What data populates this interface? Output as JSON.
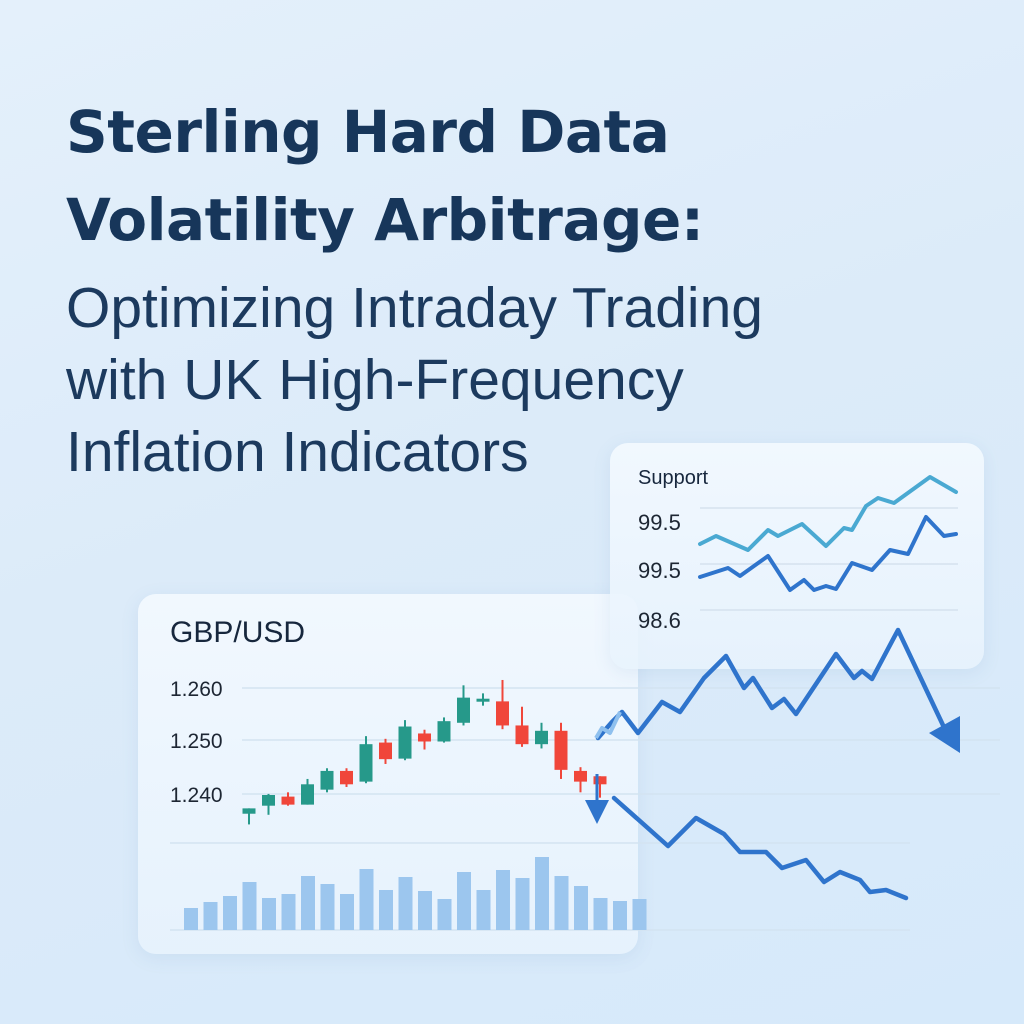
{
  "title": {
    "line1": "Sterling Hard Data",
    "line2": "Volatility Arbitrage:",
    "sub1": "Optimizing Intraday Trading",
    "sub2": "with UK High-Frequency",
    "sub3": "Inflation Indicators"
  },
  "colors": {
    "title": "#17365a",
    "bullish": "#26998a",
    "bearish": "#f0463a",
    "line_primary": "#2f74cc",
    "line_secondary": "#4aa9d2",
    "volume": "#9cc6ee"
  },
  "main_panel": {
    "pair": "GBP/USD",
    "y_ticks": [
      "1.260",
      "1.250",
      "1.240"
    ]
  },
  "support_panel": {
    "label": "Support",
    "y_ticks": [
      "99.5",
      "99.5",
      "98.6"
    ]
  },
  "chart_data": [
    {
      "type": "candlestick",
      "title": "GBP/USD",
      "ylabel": "",
      "y_ticks": [
        1.26,
        1.25,
        1.24
      ],
      "ylim": [
        1.233,
        1.262
      ],
      "candles": [
        {
          "o": 1.2365,
          "h": 1.2375,
          "l": 1.2345,
          "c": 1.2375,
          "dir": "up"
        },
        {
          "o": 1.238,
          "h": 1.2402,
          "l": 1.2363,
          "c": 1.24,
          "dir": "up"
        },
        {
          "o": 1.2397,
          "h": 1.2405,
          "l": 1.238,
          "c": 1.2382,
          "dir": "down"
        },
        {
          "o": 1.2382,
          "h": 1.243,
          "l": 1.2382,
          "c": 1.242,
          "dir": "up"
        },
        {
          "o": 1.241,
          "h": 1.245,
          "l": 1.2405,
          "c": 1.2445,
          "dir": "up"
        },
        {
          "o": 1.2445,
          "h": 1.245,
          "l": 1.2415,
          "c": 1.242,
          "dir": "down"
        },
        {
          "o": 1.2425,
          "h": 1.251,
          "l": 1.2422,
          "c": 1.2495,
          "dir": "up"
        },
        {
          "o": 1.2498,
          "h": 1.2505,
          "l": 1.2458,
          "c": 1.2467,
          "dir": "down"
        },
        {
          "o": 1.2468,
          "h": 1.254,
          "l": 1.2465,
          "c": 1.2528,
          "dir": "up"
        },
        {
          "o": 1.2515,
          "h": 1.2522,
          "l": 1.2485,
          "c": 1.25,
          "dir": "down"
        },
        {
          "o": 1.25,
          "h": 1.2545,
          "l": 1.2498,
          "c": 1.2538,
          "dir": "up"
        },
        {
          "o": 1.2535,
          "h": 1.2605,
          "l": 1.253,
          "c": 1.2582,
          "dir": "up"
        },
        {
          "o": 1.2575,
          "h": 1.259,
          "l": 1.2567,
          "c": 1.258,
          "dir": "up"
        },
        {
          "o": 1.2575,
          "h": 1.2615,
          "l": 1.2523,
          "c": 1.253,
          "dir": "down"
        },
        {
          "o": 1.253,
          "h": 1.2565,
          "l": 1.249,
          "c": 1.2495,
          "dir": "down"
        },
        {
          "o": 1.2495,
          "h": 1.2535,
          "l": 1.2487,
          "c": 1.252,
          "dir": "up"
        },
        {
          "o": 1.252,
          "h": 1.2535,
          "l": 1.243,
          "c": 1.2447,
          "dir": "down"
        },
        {
          "o": 1.2445,
          "h": 1.2452,
          "l": 1.2405,
          "c": 1.2425,
          "dir": "down"
        },
        {
          "o": 1.2435,
          "h": 1.2435,
          "l": 1.2395,
          "c": 1.242,
          "dir": "down"
        }
      ],
      "volume": [
        22,
        28,
        34,
        48,
        32,
        36,
        54,
        46,
        36,
        61,
        40,
        53,
        39,
        31,
        58,
        40,
        60,
        52,
        73,
        54,
        44,
        32,
        29,
        31
      ]
    },
    {
      "type": "line",
      "title": "Support",
      "y_ticks": [
        "99.5",
        "99.5",
        "98.6"
      ],
      "series": [
        {
          "name": "upper",
          "color": "#4aa9d2",
          "points": [
            [
              700,
              544
            ],
            [
              716,
              536
            ],
            [
              748,
              550
            ],
            [
              768,
              530
            ],
            [
              778,
              536
            ],
            [
              802,
              524
            ],
            [
              826,
              546
            ],
            [
              844,
              528
            ],
            [
              852,
              530
            ],
            [
              866,
              506
            ],
            [
              878,
              498
            ],
            [
              894,
              503
            ],
            [
              930,
              477
            ],
            [
              956,
              492
            ]
          ]
        },
        {
          "name": "lower",
          "color": "#2f74cc",
          "points": [
            [
              700,
              577
            ],
            [
              728,
              568
            ],
            [
              740,
              576
            ],
            [
              768,
              556
            ],
            [
              790,
              590
            ],
            [
              804,
              580
            ],
            [
              814,
              590
            ],
            [
              826,
              586
            ],
            [
              836,
              589
            ],
            [
              852,
              563
            ],
            [
              872,
              570
            ],
            [
              890,
              550
            ],
            [
              908,
              554
            ],
            [
              926,
              517
            ],
            [
              944,
              536
            ],
            [
              956,
              534
            ]
          ]
        }
      ]
    },
    {
      "type": "line",
      "title": "Projection arrows",
      "series": [
        {
          "name": "upward-path-then-drop",
          "color": "#2f74cc",
          "points": [
            [
              598,
              738
            ],
            [
              612,
              722
            ],
            [
              622,
              712
            ],
            [
              638,
              733
            ],
            [
              662,
              702
            ],
            [
              680,
              712
            ],
            [
              704,
              678
            ],
            [
              726,
              656
            ],
            [
              744,
              688
            ],
            [
              753,
              678
            ],
            [
              772,
              708
            ],
            [
              784,
              699
            ],
            [
              796,
              714
            ],
            [
              836,
              654
            ],
            [
              854,
              678
            ],
            [
              862,
              671
            ],
            [
              872,
              679
            ],
            [
              898,
              630
            ],
            [
              950,
              740
            ]
          ]
        },
        {
          "name": "downward-path",
          "color": "#2f74cc",
          "points": [
            [
              614,
              798
            ],
            [
              668,
              846
            ],
            [
              696,
              818
            ],
            [
              724,
              834
            ],
            [
              740,
              852
            ],
            [
              766,
              852
            ],
            [
              782,
              868
            ],
            [
              806,
              860
            ],
            [
              824,
              882
            ],
            [
              840,
              872
            ],
            [
              860,
              880
            ],
            [
              870,
              892
            ],
            [
              886,
              890
            ],
            [
              906,
              898
            ]
          ]
        }
      ]
    }
  ]
}
